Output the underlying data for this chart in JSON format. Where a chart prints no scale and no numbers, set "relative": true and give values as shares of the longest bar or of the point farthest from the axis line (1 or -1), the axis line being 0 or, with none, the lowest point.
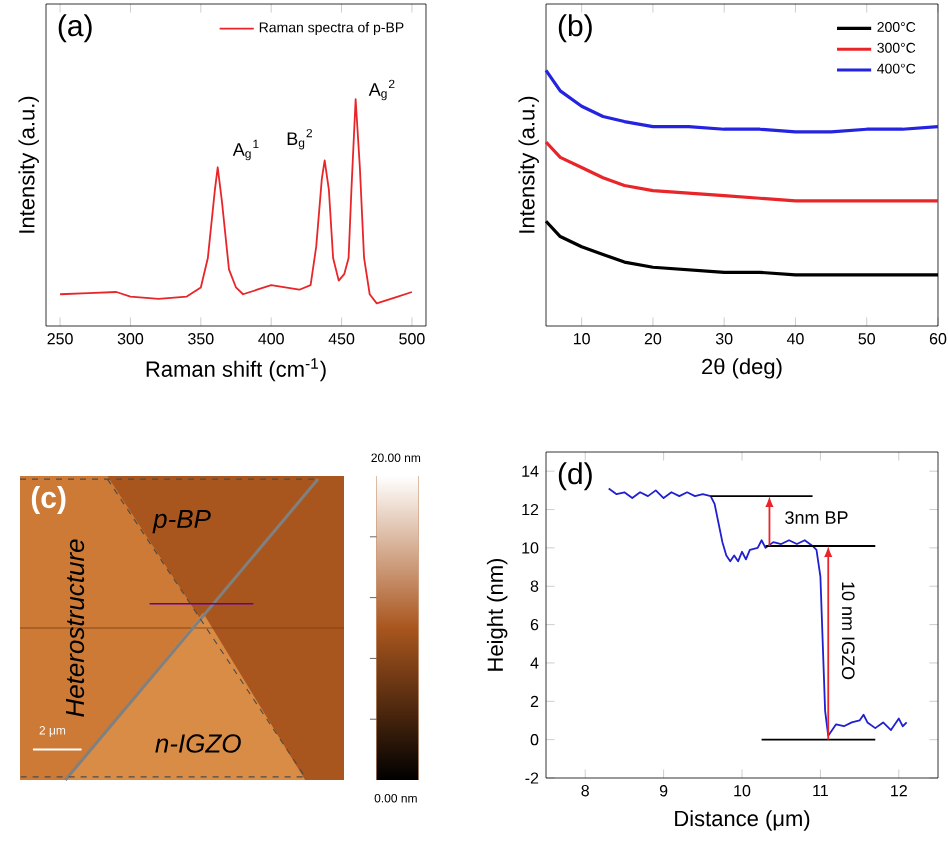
{
  "chart_data": [
    {
      "type": "line",
      "title": "(a)",
      "xlabel": "Raman shift (cm$^{-1}$)",
      "ylabel": "Intensity (a.u.)",
      "relative": true,
      "xlim": [
        240,
        510
      ],
      "xticks": [
        250,
        300,
        350,
        400,
        450,
        500
      ],
      "legend": "top right",
      "series": [
        {
          "name": "Raman spectra of p-BP",
          "color": "#e8262a",
          "x": [
            250,
            270,
            290,
            300,
            320,
            340,
            350,
            355,
            360,
            362,
            365,
            370,
            375,
            380,
            390,
            400,
            420,
            428,
            432,
            436,
            438,
            441,
            444,
            448,
            452,
            455,
            457,
            460,
            463,
            466,
            470,
            475,
            480,
            490,
            500
          ],
          "values": [
            0.14,
            0.145,
            0.15,
            0.13,
            0.12,
            0.13,
            0.17,
            0.3,
            0.6,
            0.7,
            0.55,
            0.25,
            0.17,
            0.14,
            0.16,
            0.18,
            0.16,
            0.18,
            0.35,
            0.65,
            0.73,
            0.6,
            0.3,
            0.2,
            0.23,
            0.3,
            0.6,
            1.0,
            0.7,
            0.3,
            0.14,
            0.1,
            0.11,
            0.13,
            0.15
          ]
        }
      ],
      "annotations": [
        {
          "text": "A$_{g}$$^{1}$",
          "x": 362,
          "y": 0.7
        },
        {
          "text": "B$_{g}$$^{2}$",
          "x": 438,
          "y": 0.73
        },
        {
          "text": "A$_{g}$$^{2}$",
          "x": 460,
          "y": 1.0
        }
      ]
    },
    {
      "type": "line",
      "title": "(b)",
      "xlabel": "2θ (deg)",
      "ylabel": "Intensity (a.u.)",
      "relative": true,
      "xlim": [
        5,
        60
      ],
      "xticks": [
        10,
        20,
        30,
        40,
        50,
        60
      ],
      "legend": "top right",
      "x": [
        5,
        7,
        10,
        13,
        16,
        20,
        25,
        30,
        35,
        40,
        45,
        50,
        55,
        60
      ],
      "series": [
        {
          "name": "200°C",
          "color": "#000000",
          "values": [
            0.41,
            0.35,
            0.31,
            0.28,
            0.25,
            0.23,
            0.22,
            0.21,
            0.21,
            0.2,
            0.2,
            0.2,
            0.2,
            0.2
          ]
        },
        {
          "name": "300°C",
          "color": "#e8262a",
          "values": [
            0.72,
            0.66,
            0.62,
            0.58,
            0.55,
            0.53,
            0.52,
            0.51,
            0.5,
            0.49,
            0.49,
            0.49,
            0.49,
            0.49
          ]
        },
        {
          "name": "400°C",
          "color": "#2323e0",
          "values": [
            1.0,
            0.92,
            0.86,
            0.82,
            0.8,
            0.78,
            0.78,
            0.77,
            0.77,
            0.76,
            0.76,
            0.77,
            0.77,
            0.78
          ]
        }
      ]
    },
    {
      "type": "other",
      "title": "(c)",
      "annotations": [
        "p-BP",
        "Heterostructure",
        "n-IGZO",
        "2 μm",
        "20.00 nm",
        "0.00 nm"
      ]
    },
    {
      "type": "line",
      "title": "(d)",
      "xlabel": "Distance (μm)",
      "ylabel": "Height (nm)",
      "xlim": [
        7.5,
        12.5
      ],
      "xticks": [
        8,
        9,
        10,
        11,
        12
      ],
      "ylim": [
        -2,
        15
      ],
      "yticks": [
        -2,
        0,
        2,
        4,
        6,
        8,
        10,
        12,
        14
      ],
      "series": [
        {
          "color": "#2020d0",
          "x": [
            8.3,
            8.4,
            8.5,
            8.6,
            8.7,
            8.8,
            8.9,
            9.0,
            9.1,
            9.2,
            9.3,
            9.4,
            9.5,
            9.6,
            9.65,
            9.7,
            9.75,
            9.8,
            9.85,
            9.9,
            9.95,
            10.0,
            10.05,
            10.1,
            10.2,
            10.25,
            10.3,
            10.4,
            10.5,
            10.6,
            10.7,
            10.8,
            10.9,
            10.95,
            11.0,
            11.03,
            11.06,
            11.1,
            11.15,
            11.2,
            11.3,
            11.4,
            11.5,
            11.55,
            11.6,
            11.7,
            11.8,
            11.9,
            12.0,
            12.05,
            12.1
          ],
          "values": [
            13.1,
            12.8,
            12.9,
            12.6,
            12.9,
            12.7,
            13.0,
            12.6,
            12.9,
            12.7,
            12.9,
            12.7,
            12.8,
            12.7,
            12.3,
            11.3,
            10.3,
            9.6,
            9.3,
            9.6,
            9.3,
            9.8,
            9.4,
            9.9,
            10.0,
            10.4,
            10.0,
            10.3,
            10.2,
            10.4,
            10.2,
            10.4,
            10.1,
            9.9,
            8.5,
            5,
            1.5,
            0.2,
            0.5,
            0.8,
            0.7,
            0.9,
            1.0,
            1.3,
            0.9,
            0.6,
            0.9,
            0.5,
            1.1,
            0.7,
            0.9
          ]
        },
        {
          "color": "#000000",
          "x": [
            9.6,
            10.9
          ],
          "values": [
            12.7,
            12.7
          ]
        },
        {
          "color": "#000000",
          "x": [
            10.3,
            11.7
          ],
          "values": [
            10.1,
            10.1
          ]
        },
        {
          "color": "#000000",
          "x": [
            10.25,
            11.7
          ],
          "values": [
            0,
            0
          ]
        }
      ],
      "annotations": [
        {
          "text": "3nm BP",
          "x": 10.35,
          "y": 12.7
        },
        {
          "text": "10 nm IGZO",
          "x": 11.1,
          "y": 10.1
        }
      ]
    }
  ]
}
